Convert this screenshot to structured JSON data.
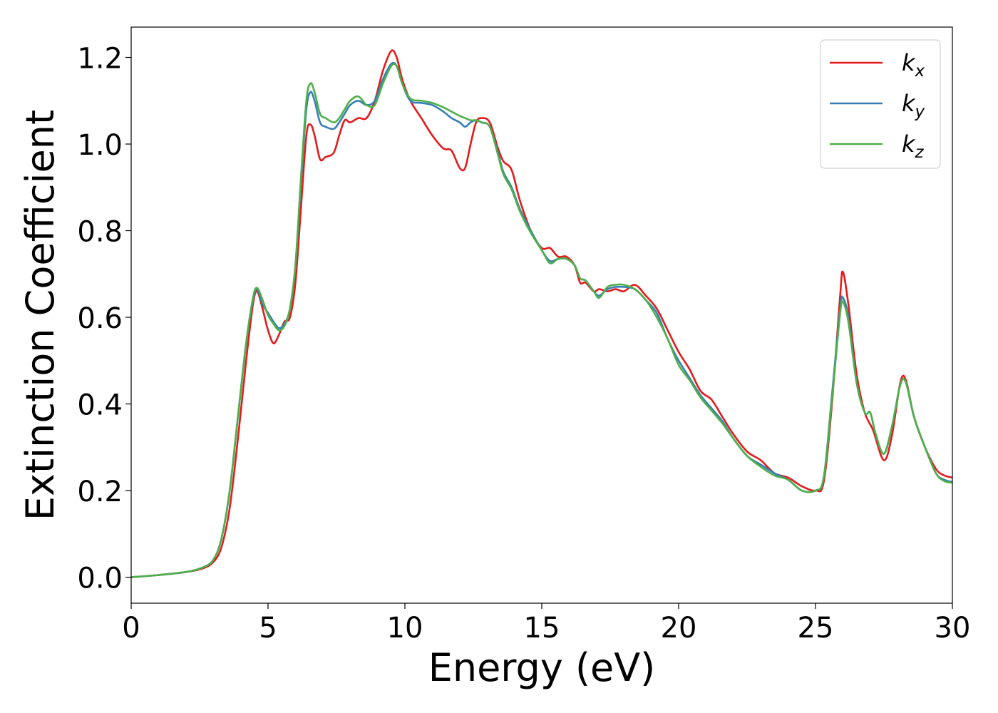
{
  "chart_data": {
    "type": "line",
    "title": "",
    "xlabel": "Energy (eV)",
    "ylabel": "Extinction Coefficient",
    "xlim": [
      0,
      30
    ],
    "ylim": [
      -0.06,
      1.27
    ],
    "xticks": [
      "0",
      "5",
      "10",
      "15",
      "20",
      "25",
      "30"
    ],
    "yticks": [
      "0.0",
      "0.2",
      "0.4",
      "0.6",
      "0.8",
      "1.0",
      "1.2"
    ],
    "grid": false,
    "legend_position": "top-right",
    "series": [
      {
        "name": "k_x",
        "label_base": "k",
        "label_sub": "x",
        "color": "#e41a1c",
        "points": [
          [
            0,
            0
          ],
          [
            1,
            0.005
          ],
          [
            2,
            0.012
          ],
          [
            2.6,
            0.02
          ],
          [
            3.0,
            0.035
          ],
          [
            3.3,
            0.07
          ],
          [
            3.6,
            0.16
          ],
          [
            3.9,
            0.32
          ],
          [
            4.2,
            0.5
          ],
          [
            4.45,
            0.63
          ],
          [
            4.6,
            0.66
          ],
          [
            4.8,
            0.62
          ],
          [
            5.0,
            0.57
          ],
          [
            5.2,
            0.54
          ],
          [
            5.4,
            0.56
          ],
          [
            5.6,
            0.59
          ],
          [
            5.8,
            0.6
          ],
          [
            6.0,
            0.68
          ],
          [
            6.2,
            0.85
          ],
          [
            6.4,
            1.02
          ],
          [
            6.55,
            1.045
          ],
          [
            6.7,
            1.02
          ],
          [
            6.9,
            0.965
          ],
          [
            7.1,
            0.97
          ],
          [
            7.4,
            0.98
          ],
          [
            7.6,
            1.02
          ],
          [
            7.8,
            1.055
          ],
          [
            8.0,
            1.05
          ],
          [
            8.3,
            1.06
          ],
          [
            8.6,
            1.06
          ],
          [
            8.9,
            1.1
          ],
          [
            9.2,
            1.17
          ],
          [
            9.5,
            1.215
          ],
          [
            9.7,
            1.2
          ],
          [
            9.9,
            1.15
          ],
          [
            10.2,
            1.1
          ],
          [
            10.6,
            1.06
          ],
          [
            11.0,
            1.02
          ],
          [
            11.4,
            0.99
          ],
          [
            11.7,
            0.985
          ],
          [
            12.0,
            0.945
          ],
          [
            12.2,
            0.945
          ],
          [
            12.4,
            1.0
          ],
          [
            12.6,
            1.05
          ],
          [
            12.8,
            1.06
          ],
          [
            13.1,
            1.05
          ],
          [
            13.4,
            0.99
          ],
          [
            13.6,
            0.96
          ],
          [
            13.9,
            0.94
          ],
          [
            14.2,
            0.87
          ],
          [
            14.6,
            0.8
          ],
          [
            15.0,
            0.76
          ],
          [
            15.3,
            0.76
          ],
          [
            15.6,
            0.74
          ],
          [
            15.9,
            0.74
          ],
          [
            16.2,
            0.72
          ],
          [
            16.4,
            0.68
          ],
          [
            16.6,
            0.68
          ],
          [
            16.9,
            0.66
          ],
          [
            17.1,
            0.665
          ],
          [
            17.4,
            0.66
          ],
          [
            17.7,
            0.665
          ],
          [
            18.0,
            0.66
          ],
          [
            18.4,
            0.675
          ],
          [
            18.8,
            0.65
          ],
          [
            19.2,
            0.62
          ],
          [
            19.6,
            0.57
          ],
          [
            20.0,
            0.52
          ],
          [
            20.4,
            0.48
          ],
          [
            20.8,
            0.43
          ],
          [
            21.2,
            0.41
          ],
          [
            21.6,
            0.37
          ],
          [
            22.0,
            0.33
          ],
          [
            22.5,
            0.29
          ],
          [
            23.0,
            0.27
          ],
          [
            23.5,
            0.24
          ],
          [
            24.0,
            0.23
          ],
          [
            24.5,
            0.21
          ],
          [
            25.0,
            0.2
          ],
          [
            25.3,
            0.22
          ],
          [
            25.6,
            0.4
          ],
          [
            25.9,
            0.65
          ],
          [
            26.0,
            0.705
          ],
          [
            26.2,
            0.63
          ],
          [
            26.5,
            0.47
          ],
          [
            26.8,
            0.38
          ],
          [
            27.1,
            0.34
          ],
          [
            27.5,
            0.27
          ],
          [
            27.8,
            0.33
          ],
          [
            28.1,
            0.45
          ],
          [
            28.3,
            0.455
          ],
          [
            28.6,
            0.37
          ],
          [
            29.0,
            0.3
          ],
          [
            29.4,
            0.25
          ],
          [
            29.7,
            0.235
          ],
          [
            30.0,
            0.23
          ]
        ]
      },
      {
        "name": "k_y",
        "label_base": "k",
        "label_sub": "y",
        "color": "#377eb8",
        "points": [
          [
            0,
            0
          ],
          [
            1,
            0.005
          ],
          [
            2,
            0.012
          ],
          [
            2.6,
            0.022
          ],
          [
            3.0,
            0.04
          ],
          [
            3.3,
            0.09
          ],
          [
            3.6,
            0.2
          ],
          [
            3.9,
            0.37
          ],
          [
            4.2,
            0.54
          ],
          [
            4.45,
            0.64
          ],
          [
            4.6,
            0.665
          ],
          [
            4.8,
            0.63
          ],
          [
            5.0,
            0.61
          ],
          [
            5.2,
            0.59
          ],
          [
            5.4,
            0.575
          ],
          [
            5.6,
            0.585
          ],
          [
            5.8,
            0.62
          ],
          [
            6.0,
            0.72
          ],
          [
            6.2,
            0.91
          ],
          [
            6.4,
            1.08
          ],
          [
            6.55,
            1.12
          ],
          [
            6.7,
            1.1
          ],
          [
            6.9,
            1.05
          ],
          [
            7.1,
            1.04
          ],
          [
            7.4,
            1.035
          ],
          [
            7.6,
            1.05
          ],
          [
            7.8,
            1.07
          ],
          [
            8.0,
            1.09
          ],
          [
            8.3,
            1.1
          ],
          [
            8.6,
            1.09
          ],
          [
            8.9,
            1.1
          ],
          [
            9.2,
            1.15
          ],
          [
            9.5,
            1.185
          ],
          [
            9.7,
            1.18
          ],
          [
            9.9,
            1.14
          ],
          [
            10.2,
            1.1
          ],
          [
            10.6,
            1.095
          ],
          [
            11.0,
            1.09
          ],
          [
            11.4,
            1.075
          ],
          [
            11.7,
            1.06
          ],
          [
            12.0,
            1.05
          ],
          [
            12.2,
            1.04
          ],
          [
            12.4,
            1.05
          ],
          [
            12.6,
            1.055
          ],
          [
            12.8,
            1.05
          ],
          [
            13.1,
            1.04
          ],
          [
            13.4,
            0.98
          ],
          [
            13.6,
            0.935
          ],
          [
            13.9,
            0.9
          ],
          [
            14.2,
            0.85
          ],
          [
            14.6,
            0.8
          ],
          [
            15.0,
            0.755
          ],
          [
            15.3,
            0.73
          ],
          [
            15.6,
            0.735
          ],
          [
            15.9,
            0.735
          ],
          [
            16.2,
            0.72
          ],
          [
            16.4,
            0.69
          ],
          [
            16.6,
            0.685
          ],
          [
            16.9,
            0.66
          ],
          [
            17.1,
            0.65
          ],
          [
            17.4,
            0.665
          ],
          [
            17.7,
            0.67
          ],
          [
            18.0,
            0.67
          ],
          [
            18.4,
            0.665
          ],
          [
            18.8,
            0.64
          ],
          [
            19.2,
            0.61
          ],
          [
            19.6,
            0.55
          ],
          [
            20.0,
            0.5
          ],
          [
            20.4,
            0.46
          ],
          [
            20.8,
            0.42
          ],
          [
            21.2,
            0.39
          ],
          [
            21.6,
            0.36
          ],
          [
            22.0,
            0.32
          ],
          [
            22.5,
            0.28
          ],
          [
            23.0,
            0.26
          ],
          [
            23.5,
            0.24
          ],
          [
            24.0,
            0.225
          ],
          [
            24.5,
            0.2
          ],
          [
            25.0,
            0.2
          ],
          [
            25.3,
            0.23
          ],
          [
            25.6,
            0.42
          ],
          [
            25.9,
            0.62
          ],
          [
            26.0,
            0.645
          ],
          [
            26.2,
            0.6
          ],
          [
            26.5,
            0.45
          ],
          [
            26.8,
            0.38
          ],
          [
            27.0,
            0.38
          ],
          [
            27.2,
            0.33
          ],
          [
            27.5,
            0.285
          ],
          [
            27.8,
            0.35
          ],
          [
            28.1,
            0.445
          ],
          [
            28.3,
            0.45
          ],
          [
            28.6,
            0.37
          ],
          [
            29.0,
            0.3
          ],
          [
            29.4,
            0.24
          ],
          [
            29.7,
            0.225
          ],
          [
            30.0,
            0.22
          ]
        ]
      },
      {
        "name": "k_z",
        "label_base": "k",
        "label_sub": "z",
        "color": "#4daf4a",
        "points": [
          [
            0,
            0
          ],
          [
            1,
            0.005
          ],
          [
            2,
            0.012
          ],
          [
            2.6,
            0.022
          ],
          [
            3.0,
            0.04
          ],
          [
            3.3,
            0.09
          ],
          [
            3.6,
            0.2
          ],
          [
            3.9,
            0.37
          ],
          [
            4.2,
            0.54
          ],
          [
            4.45,
            0.645
          ],
          [
            4.6,
            0.668
          ],
          [
            4.8,
            0.64
          ],
          [
            5.0,
            0.605
          ],
          [
            5.2,
            0.585
          ],
          [
            5.4,
            0.57
          ],
          [
            5.6,
            0.58
          ],
          [
            5.8,
            0.62
          ],
          [
            6.0,
            0.72
          ],
          [
            6.2,
            0.92
          ],
          [
            6.4,
            1.1
          ],
          [
            6.55,
            1.14
          ],
          [
            6.7,
            1.12
          ],
          [
            6.9,
            1.07
          ],
          [
            7.1,
            1.06
          ],
          [
            7.4,
            1.05
          ],
          [
            7.6,
            1.06
          ],
          [
            7.8,
            1.08
          ],
          [
            8.0,
            1.1
          ],
          [
            8.3,
            1.11
          ],
          [
            8.6,
            1.09
          ],
          [
            8.9,
            1.09
          ],
          [
            9.2,
            1.14
          ],
          [
            9.5,
            1.18
          ],
          [
            9.7,
            1.18
          ],
          [
            9.9,
            1.14
          ],
          [
            10.2,
            1.105
          ],
          [
            10.6,
            1.1
          ],
          [
            11.0,
            1.095
          ],
          [
            11.4,
            1.085
          ],
          [
            11.7,
            1.075
          ],
          [
            12.0,
            1.065
          ],
          [
            12.2,
            1.06
          ],
          [
            12.4,
            1.055
          ],
          [
            12.6,
            1.055
          ],
          [
            12.8,
            1.05
          ],
          [
            13.1,
            1.04
          ],
          [
            13.4,
            0.975
          ],
          [
            13.6,
            0.93
          ],
          [
            13.9,
            0.895
          ],
          [
            14.2,
            0.845
          ],
          [
            14.6,
            0.795
          ],
          [
            15.0,
            0.755
          ],
          [
            15.3,
            0.725
          ],
          [
            15.6,
            0.735
          ],
          [
            15.9,
            0.735
          ],
          [
            16.2,
            0.72
          ],
          [
            16.4,
            0.69
          ],
          [
            16.6,
            0.685
          ],
          [
            16.9,
            0.66
          ],
          [
            17.1,
            0.645
          ],
          [
            17.4,
            0.67
          ],
          [
            17.7,
            0.675
          ],
          [
            18.0,
            0.675
          ],
          [
            18.4,
            0.665
          ],
          [
            18.8,
            0.64
          ],
          [
            19.2,
            0.6
          ],
          [
            19.6,
            0.55
          ],
          [
            20.0,
            0.49
          ],
          [
            20.4,
            0.455
          ],
          [
            20.8,
            0.415
          ],
          [
            21.2,
            0.385
          ],
          [
            21.6,
            0.355
          ],
          [
            22.0,
            0.32
          ],
          [
            22.5,
            0.28
          ],
          [
            23.0,
            0.255
          ],
          [
            23.5,
            0.235
          ],
          [
            24.0,
            0.225
          ],
          [
            24.5,
            0.2
          ],
          [
            25.0,
            0.2
          ],
          [
            25.3,
            0.23
          ],
          [
            25.6,
            0.41
          ],
          [
            25.9,
            0.61
          ],
          [
            26.0,
            0.635
          ],
          [
            26.2,
            0.59
          ],
          [
            26.5,
            0.45
          ],
          [
            26.8,
            0.38
          ],
          [
            27.0,
            0.38
          ],
          [
            27.2,
            0.33
          ],
          [
            27.5,
            0.285
          ],
          [
            27.8,
            0.35
          ],
          [
            28.1,
            0.445
          ],
          [
            28.3,
            0.45
          ],
          [
            28.6,
            0.37
          ],
          [
            29.0,
            0.3
          ],
          [
            29.4,
            0.24
          ],
          [
            29.7,
            0.222
          ],
          [
            30.0,
            0.218
          ]
        ]
      }
    ]
  }
}
